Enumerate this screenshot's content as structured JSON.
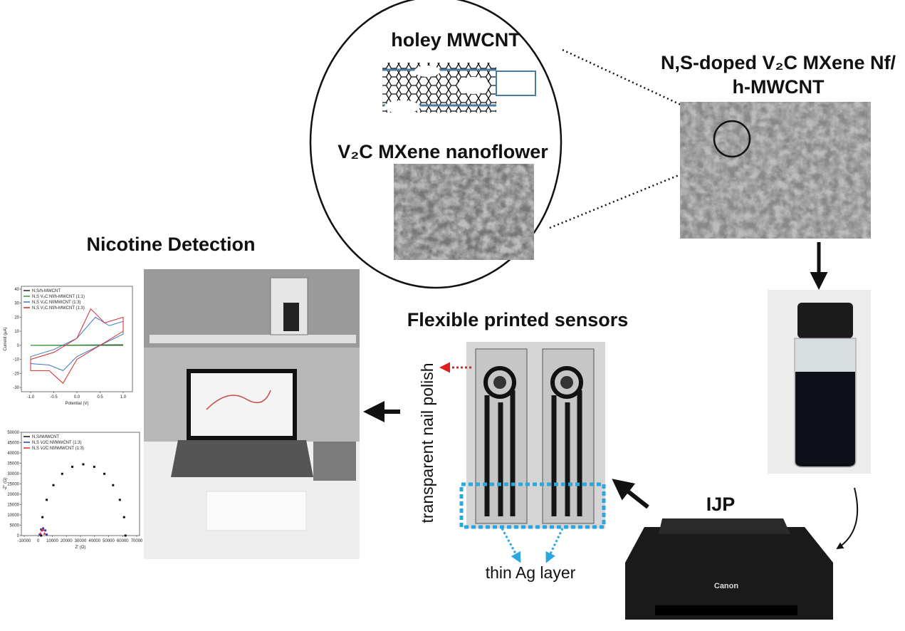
{
  "magnified_view": {
    "cnt_label": "holey MWCNT",
    "nanoflower_label": "V₂C MXene nanoflower"
  },
  "composite": {
    "label_lines": [
      "N,S-doped V₂C MXene Nf/",
      "h-MWCNT"
    ]
  },
  "printing": {
    "label": "IJP",
    "printer_brand": "Canon"
  },
  "sensors": {
    "title": "Flexible printed sensors",
    "annotations": [
      "transparent nail polish",
      "thin Ag layer"
    ]
  },
  "detection": {
    "title": "Nicotine Detection"
  },
  "chart_data": [
    {
      "type": "line",
      "x_label": "Potential (V)",
      "y_label": "Current (µA)",
      "xlim": [
        -1.2,
        1.2
      ],
      "xticks": [
        {
          "value": -1,
          "label": "-1.0"
        },
        {
          "value": -0.5,
          "label": "-0.5"
        },
        {
          "value": 0,
          "label": "0.0"
        },
        {
          "value": 0.5,
          "label": "0.5"
        },
        {
          "value": 1,
          "label": "1.0"
        }
      ],
      "ylim": [
        -33,
        42
      ],
      "yticks": [
        -30,
        -20,
        -10,
        0,
        10,
        20,
        30,
        40
      ],
      "series": [
        {
          "name": "N,S/h-MWCNT",
          "color": "#222222",
          "x": [
            -1,
            1
          ],
          "values": [
            0,
            0
          ]
        },
        {
          "name": "N,S V₂C Nf/h-MWCNT (1:1)",
          "color": "#2ca02c",
          "x": [
            -1,
            1
          ],
          "values": [
            0,
            0.5
          ]
        },
        {
          "name": "N,S V₂C Nf/MWCNT (1:3)",
          "color": "#3a78c2",
          "x": [
            -1,
            -0.5,
            0,
            0.4,
            0.7,
            1,
            1,
            0.5,
            0,
            -0.3,
            -0.6,
            -1,
            -1
          ],
          "values": [
            -8,
            -3,
            5,
            20,
            14,
            17,
            8,
            0,
            -8,
            -18,
            -14,
            -13,
            -8
          ]
        },
        {
          "name": "N,S V₂C Nf/h-MWCNT (1:3)",
          "color": "#d62728",
          "x": [
            -1,
            -0.5,
            0,
            0.3,
            0.6,
            1,
            1,
            0.5,
            0,
            -0.3,
            -0.6,
            -1,
            -1
          ],
          "values": [
            -10,
            -5,
            5,
            26,
            16,
            20,
            10,
            0,
            -10,
            -27,
            -18,
            -18,
            -10
          ]
        }
      ]
    },
    {
      "type": "scatter",
      "x_label": "Z' (Ω)",
      "y_label": "-Z'' (Ω)",
      "xlim": [
        -12000,
        72000
      ],
      "xticks": [
        -10000,
        0,
        10000,
        20000,
        30000,
        40000,
        50000,
        60000,
        70000
      ],
      "ylim": [
        0,
        50000
      ],
      "yticks": [
        0,
        5000,
        10000,
        15000,
        20000,
        25000,
        30000,
        35000,
        40000,
        45000,
        50000
      ],
      "series": [
        {
          "name": "N,S/hMWCNT",
          "color": "#111111",
          "marker": "square",
          "x": [
            2000,
            3000,
            6000,
            10800,
            17000,
            24200,
            32000,
            39800,
            47000,
            53200,
            58000,
            61000,
            62000
          ],
          "values": [
            0,
            8900,
            17300,
            24400,
            29900,
            33300,
            34500,
            33300,
            29900,
            24400,
            17300,
            8900,
            0
          ]
        },
        {
          "name": "N,S V2C Nf/MWCNT (1:3)",
          "color": "#1f3fbf",
          "marker": "circle",
          "x": [
            1000,
            2000,
            3500,
            5000,
            6000
          ],
          "values": [
            500,
            3000,
            3500,
            2500,
            500
          ]
        },
        {
          "name": "N,S V2C Nf/hMWCNT (1:3)",
          "color": "#d62728",
          "marker": "triangle",
          "x": [
            1500,
            2500,
            3500,
            4500
          ],
          "values": [
            1000,
            2500,
            2800,
            1000
          ]
        }
      ]
    }
  ]
}
